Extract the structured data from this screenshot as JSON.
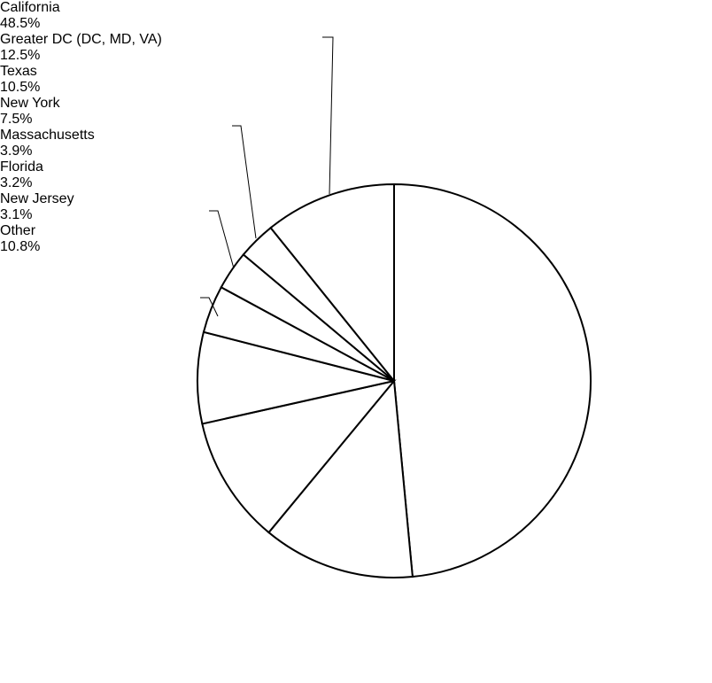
{
  "chart_data": {
    "type": "pie",
    "categories": [
      "California",
      "Greater DC (DC, MD, VA)",
      "Texas",
      "New York",
      "Massachusetts",
      "Florida",
      "New Jersey",
      "Other"
    ],
    "values": [
      48.5,
      12.5,
      10.5,
      7.5,
      3.9,
      3.2,
      3.1,
      10.8
    ],
    "value_labels": [
      "48.5%",
      "12.5%",
      "10.5%",
      "7.5%",
      "3.9%",
      "3.2%",
      "3.1%",
      "10.8%"
    ],
    "color": "#ffffff"
  }
}
